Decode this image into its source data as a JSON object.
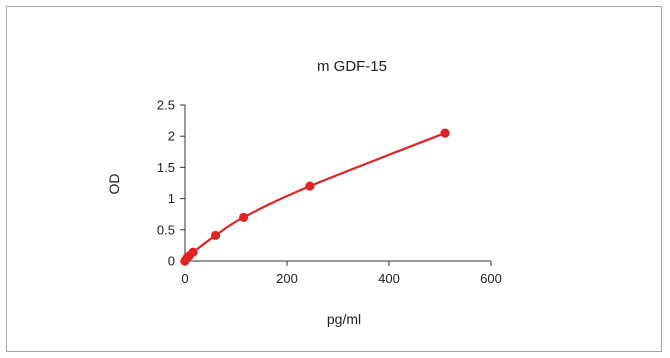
{
  "chart_data": {
    "type": "line",
    "title": "m GDF-15",
    "xlabel": "pg/ml",
    "ylabel": "OD",
    "xlim": [
      0,
      600
    ],
    "ylim": [
      0,
      2.5
    ],
    "xticks": [
      0,
      200,
      400,
      600
    ],
    "yticks": [
      0,
      0.5,
      1,
      1.5,
      2,
      2.5
    ],
    "xtick_labels": [
      "0",
      "200",
      "400",
      "600"
    ],
    "ytick_labels": [
      "0",
      "0.5",
      "1",
      "1.5",
      "2",
      "2.5"
    ],
    "grid": false,
    "legend": "none",
    "series": [
      {
        "x": [
          0,
          4,
          8,
          16,
          60,
          115,
          245,
          510
        ],
        "y": [
          0.0,
          0.05,
          0.08,
          0.14,
          0.41,
          0.7,
          1.2,
          2.05
        ]
      }
    ],
    "color": "#e02424"
  }
}
